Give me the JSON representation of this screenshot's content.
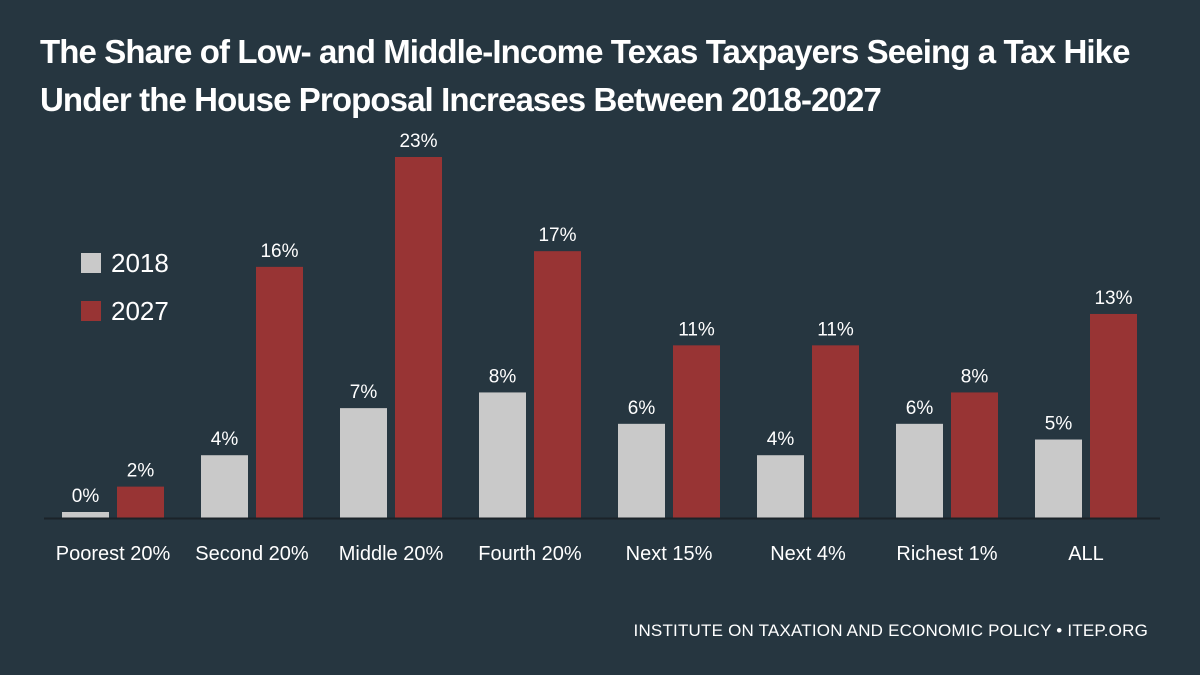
{
  "chart_data": {
    "type": "bar",
    "title": "The Share of Low- and Middle-Income Texas Taxpayers Seeing a Tax Hike Under the House Proposal Increases Between 2018-2027",
    "xlabel": "",
    "ylabel": "",
    "categories": [
      "Poorest 20%",
      "Second 20%",
      "Middle 20%",
      "Fourth 20%",
      "Next 15%",
      "Next 4%",
      "Richest 1%",
      "ALL"
    ],
    "series": [
      {
        "name": "2018",
        "color": "#c9c9c9",
        "values": [
          0,
          4,
          7,
          8,
          6,
          4,
          6,
          5
        ],
        "labels": [
          "0%",
          "4%",
          "7%",
          "8%",
          "6%",
          "4%",
          "6%",
          "5%"
        ]
      },
      {
        "name": "2027",
        "color": "#983434",
        "values": [
          2,
          16,
          23,
          17,
          11,
          11,
          8,
          13
        ],
        "labels": [
          "2%",
          "16%",
          "23%",
          "17%",
          "11%",
          "11%",
          "8%",
          "13%"
        ]
      }
    ],
    "ylim": [
      0,
      23
    ],
    "grid": false,
    "legend_position": "left"
  },
  "footer": {
    "credit": "INSTITUTE ON TAXATION AND ECONOMIC POLICY • ITEP.ORG"
  },
  "colors": {
    "background": "#263640",
    "bar_2018": "#c9c9c9",
    "bar_2027": "#983434",
    "text": "#ffffff"
  }
}
